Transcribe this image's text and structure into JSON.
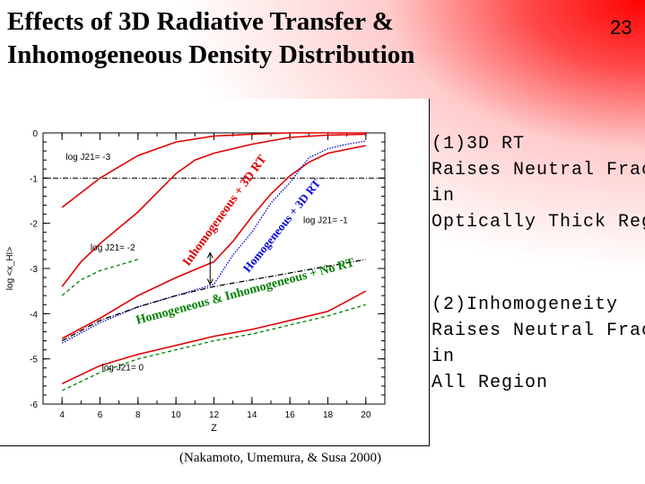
{
  "slide": {
    "title_line1": "Effects of 3D Radiative Transfer &",
    "title_line2": "Inhomogeneous Density Distribution",
    "number": "23",
    "caption": "(Nakamoto, Umemura, & Susa 2000)"
  },
  "notes": {
    "point1": [
      "(1)3D RT",
      "Raises Neutral Fract",
      "in",
      "Optically Thick Regi"
    ],
    "point2": [
      "(2)Inhomogeneity",
      "Raises Neutral Fract",
      "in",
      "All Region"
    ]
  },
  "colors": {
    "accent_red": "#ff0000",
    "line_red": "#e00000",
    "line_blue": "#0000dd",
    "line_green": "#008000"
  },
  "chart_data": {
    "type": "line",
    "xlabel": "Z",
    "ylabel": "log <x_HI>",
    "xlim": [
      3,
      21
    ],
    "ylim": [
      -6,
      0
    ],
    "xticks": [
      "4",
      "6",
      "8",
      "10",
      "12",
      "14",
      "16",
      "18",
      "20"
    ],
    "yticks": [
      "0",
      "-1",
      "-2",
      "-3",
      "-4",
      "-5",
      "-6"
    ],
    "annotations": [
      {
        "text": "log J21= -3",
        "x": 4.2,
        "y": -0.6
      },
      {
        "text": "log J21= -2",
        "x": 5.5,
        "y": -2.6
      },
      {
        "text": "log J21= -1",
        "x": 16.7,
        "y": -2.0
      },
      {
        "text": "log J21= 0",
        "x": 6.1,
        "y": -5.25
      },
      {
        "text": "Inhomogeneous + 3D RT",
        "color": "red"
      },
      {
        "text": "Homogeneous + 3D RT",
        "color": "blue"
      },
      {
        "text": "Homogeneous & Inhomogeneous + No RT",
        "color": "green"
      }
    ],
    "reference_line": {
      "y": -1,
      "style": "dash-dot"
    },
    "arrow": {
      "x": 11.8,
      "y_from": -3.35,
      "y_to": -2.65
    },
    "series": [
      {
        "color": "red",
        "style": "solid",
        "points": [
          [
            4,
            -1.65
          ],
          [
            6,
            -1.0
          ],
          [
            8,
            -0.5
          ],
          [
            10,
            -0.2
          ],
          [
            12,
            -0.07
          ],
          [
            14,
            -0.03
          ],
          [
            16,
            0
          ],
          [
            18,
            0
          ],
          [
            20,
            0
          ]
        ]
      },
      {
        "color": "red",
        "style": "solid",
        "points": [
          [
            4,
            -3.4
          ],
          [
            5,
            -2.85
          ],
          [
            6,
            -2.45
          ],
          [
            8,
            -1.75
          ],
          [
            10,
            -0.9
          ],
          [
            11,
            -0.6
          ],
          [
            12,
            -0.45
          ],
          [
            14,
            -0.25
          ],
          [
            16,
            -0.1
          ],
          [
            18,
            -0.05
          ],
          [
            20,
            -0.03
          ]
        ]
      },
      {
        "color": "red",
        "style": "solid",
        "points": [
          [
            4,
            -4.55
          ],
          [
            6,
            -4.1
          ],
          [
            8,
            -3.6
          ],
          [
            10,
            -3.2
          ],
          [
            12,
            -2.85
          ],
          [
            13,
            -2.4
          ],
          [
            14,
            -1.85
          ],
          [
            15,
            -1.35
          ],
          [
            16,
            -0.95
          ],
          [
            17,
            -0.65
          ],
          [
            18,
            -0.45
          ],
          [
            20,
            -0.28
          ]
        ]
      },
      {
        "color": "red",
        "style": "solid",
        "points": [
          [
            4,
            -5.55
          ],
          [
            6,
            -5.15
          ],
          [
            8,
            -4.9
          ],
          [
            10,
            -4.7
          ],
          [
            12,
            -4.5
          ],
          [
            14,
            -4.35
          ],
          [
            16,
            -4.15
          ],
          [
            18,
            -3.95
          ],
          [
            20,
            -3.5
          ]
        ]
      },
      {
        "color": "blue",
        "style": "dotted",
        "points": [
          [
            4,
            -4.65
          ],
          [
            6,
            -4.2
          ],
          [
            8,
            -3.85
          ],
          [
            10,
            -3.6
          ],
          [
            12,
            -3.35
          ],
          [
            13,
            -2.7
          ],
          [
            14,
            -2.2
          ],
          [
            15,
            -1.55
          ],
          [
            16,
            -1.1
          ],
          [
            17,
            -0.55
          ],
          [
            18,
            -0.35
          ],
          [
            19,
            -0.25
          ],
          [
            20,
            -0.18
          ]
        ]
      },
      {
        "color": "green",
        "style": "dashed",
        "points": [
          [
            4,
            -3.6
          ],
          [
            5,
            -3.25
          ],
          [
            6,
            -3.05
          ],
          [
            8,
            -2.8
          ]
        ]
      },
      {
        "color": "black",
        "style": "dashdot",
        "points": [
          [
            4,
            -4.6
          ],
          [
            6,
            -4.15
          ],
          [
            8,
            -3.85
          ],
          [
            10,
            -3.6
          ],
          [
            12,
            -3.4
          ],
          [
            14,
            -3.25
          ],
          [
            16,
            -3.1
          ],
          [
            18,
            -2.95
          ],
          [
            20,
            -2.8
          ]
        ]
      },
      {
        "color": "green",
        "style": "dashed",
        "points": [
          [
            4,
            -5.7
          ],
          [
            6,
            -5.3
          ],
          [
            8,
            -5.0
          ],
          [
            10,
            -4.8
          ],
          [
            12,
            -4.6
          ],
          [
            14,
            -4.45
          ],
          [
            16,
            -4.25
          ],
          [
            18,
            -4.05
          ],
          [
            20,
            -3.8
          ]
        ]
      }
    ]
  }
}
